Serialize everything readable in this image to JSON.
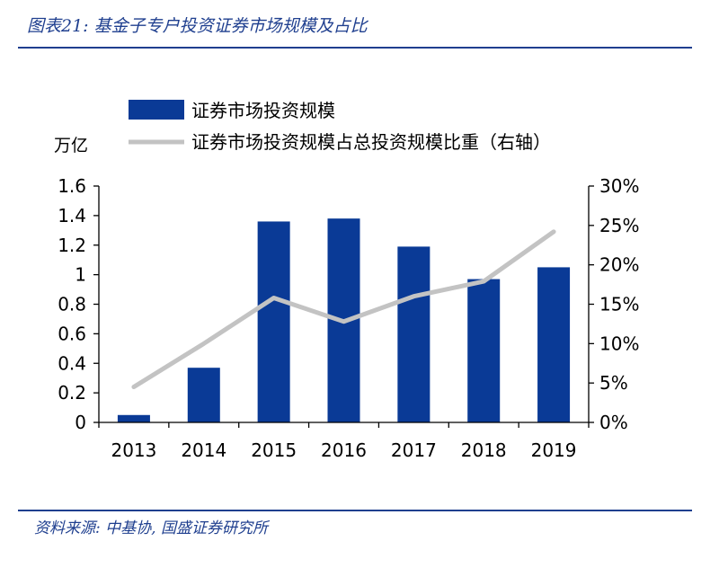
{
  "header": {
    "title": "图表21: 基金子专户投资证券市场规模及占比"
  },
  "footer": {
    "source": "资料来源: 中基协, 国盛证券研究所"
  },
  "chart_data": {
    "type": "bar",
    "categories": [
      "2013",
      "2014",
      "2015",
      "2016",
      "2017",
      "2018",
      "2019"
    ],
    "series": [
      {
        "name": "证券市场投资规模",
        "type": "bar",
        "axis": "left",
        "values": [
          0.05,
          0.37,
          1.36,
          1.38,
          1.19,
          0.97,
          1.05
        ],
        "color": "#0a3a96"
      },
      {
        "name": "证券市场投资规模占总投资规模比重（右轴）",
        "type": "line",
        "axis": "right",
        "values": [
          4.5,
          10.0,
          15.8,
          12.8,
          16.0,
          17.9,
          24.2
        ],
        "color": "#c3c3c3"
      }
    ],
    "ylabel": "万亿",
    "ylim": [
      0,
      1.6
    ],
    "yticks": [
      "0",
      "0.2",
      "0.4",
      "0.6",
      "0.8",
      "1",
      "1.2",
      "1.4",
      "1.6"
    ],
    "y2lim": [
      0,
      30
    ],
    "y2ticks": [
      "0%",
      "5%",
      "10%",
      "15%",
      "20%",
      "25%",
      "30%"
    ],
    "legend": "top"
  }
}
